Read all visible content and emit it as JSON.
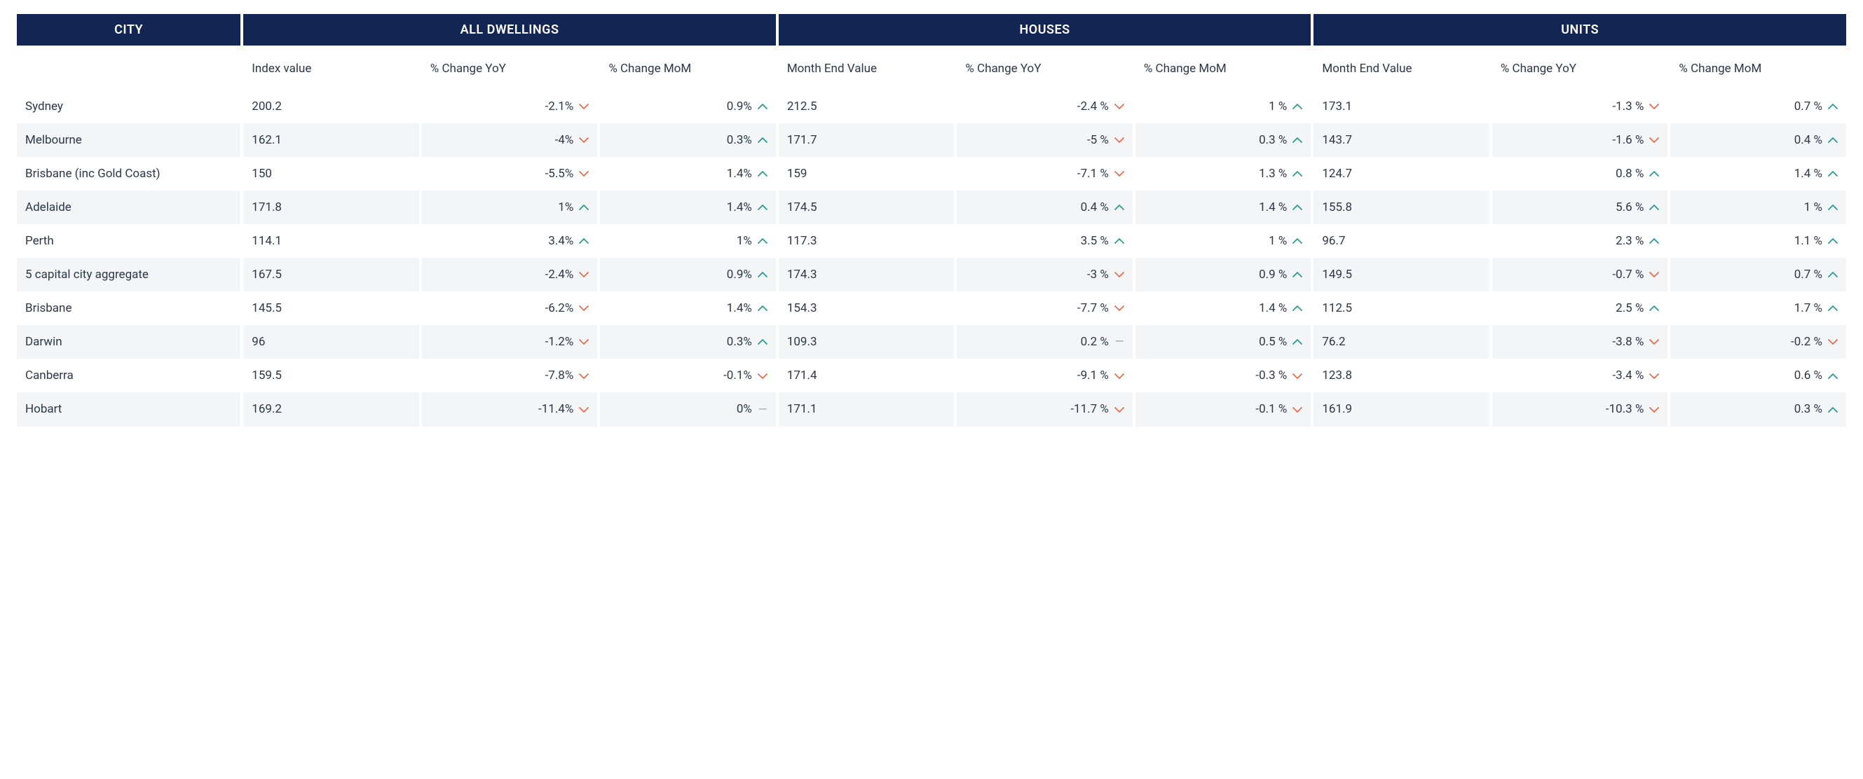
{
  "colors": {
    "header_bg": "#132552",
    "header_fg": "#ffffff",
    "row_alt_bg": "#f3f5f7",
    "text": "#2d3748",
    "chev_up": "#2a9d8f",
    "chev_down": "#e76f51",
    "neutral": "#9ca3af"
  },
  "group_headers": [
    "CITY",
    "ALL DWELLINGS",
    "HOUSES",
    "UNITS"
  ],
  "sub_headers": [
    "",
    "Index value",
    "% Change YoY",
    "% Change MoM",
    "Month End Value",
    "% Change YoY",
    "% Change MoM",
    "Month End Value",
    "% Change YoY",
    "% Change MoM"
  ],
  "rows": [
    {
      "city": "Sydney",
      "cells": [
        {
          "v": "200.2",
          "t": "val"
        },
        {
          "v": "-2.1%",
          "t": "pct",
          "d": "down"
        },
        {
          "v": "0.9%",
          "t": "pct",
          "d": "up"
        },
        {
          "v": "212.5",
          "t": "val"
        },
        {
          "v": "-2.4 %",
          "t": "pct",
          "d": "down"
        },
        {
          "v": "1 %",
          "t": "pct",
          "d": "up"
        },
        {
          "v": "173.1",
          "t": "val"
        },
        {
          "v": "-1.3 %",
          "t": "pct",
          "d": "down"
        },
        {
          "v": "0.7 %",
          "t": "pct",
          "d": "up"
        }
      ]
    },
    {
      "city": "Melbourne",
      "cells": [
        {
          "v": "162.1",
          "t": "val"
        },
        {
          "v": "-4%",
          "t": "pct",
          "d": "down"
        },
        {
          "v": "0.3%",
          "t": "pct",
          "d": "up"
        },
        {
          "v": "171.7",
          "t": "val"
        },
        {
          "v": "-5 %",
          "t": "pct",
          "d": "down"
        },
        {
          "v": "0.3 %",
          "t": "pct",
          "d": "up"
        },
        {
          "v": "143.7",
          "t": "val"
        },
        {
          "v": "-1.6 %",
          "t": "pct",
          "d": "down"
        },
        {
          "v": "0.4 %",
          "t": "pct",
          "d": "up"
        }
      ]
    },
    {
      "city": "Brisbane (inc Gold Coast)",
      "cells": [
        {
          "v": "150",
          "t": "val"
        },
        {
          "v": "-5.5%",
          "t": "pct",
          "d": "down"
        },
        {
          "v": "1.4%",
          "t": "pct",
          "d": "up"
        },
        {
          "v": "159",
          "t": "val"
        },
        {
          "v": "-7.1 %",
          "t": "pct",
          "d": "down"
        },
        {
          "v": "1.3 %",
          "t": "pct",
          "d": "up"
        },
        {
          "v": "124.7",
          "t": "val"
        },
        {
          "v": "0.8 %",
          "t": "pct",
          "d": "up"
        },
        {
          "v": "1.4 %",
          "t": "pct",
          "d": "up"
        }
      ]
    },
    {
      "city": "Adelaide",
      "cells": [
        {
          "v": "171.8",
          "t": "val"
        },
        {
          "v": "1%",
          "t": "pct",
          "d": "up"
        },
        {
          "v": "1.4%",
          "t": "pct",
          "d": "up"
        },
        {
          "v": "174.5",
          "t": "val"
        },
        {
          "v": "0.4 %",
          "t": "pct",
          "d": "up"
        },
        {
          "v": "1.4 %",
          "t": "pct",
          "d": "up"
        },
        {
          "v": "155.8",
          "t": "val"
        },
        {
          "v": "5.6 %",
          "t": "pct",
          "d": "up"
        },
        {
          "v": "1 %",
          "t": "pct",
          "d": "up"
        }
      ]
    },
    {
      "city": "Perth",
      "cells": [
        {
          "v": "114.1",
          "t": "val"
        },
        {
          "v": "3.4%",
          "t": "pct",
          "d": "up"
        },
        {
          "v": "1%",
          "t": "pct",
          "d": "up"
        },
        {
          "v": "117.3",
          "t": "val"
        },
        {
          "v": "3.5 %",
          "t": "pct",
          "d": "up"
        },
        {
          "v": "1 %",
          "t": "pct",
          "d": "up"
        },
        {
          "v": "96.7",
          "t": "val"
        },
        {
          "v": "2.3 %",
          "t": "pct",
          "d": "up"
        },
        {
          "v": "1.1 %",
          "t": "pct",
          "d": "up"
        }
      ]
    },
    {
      "city": "5 capital city aggregate",
      "cells": [
        {
          "v": "167.5",
          "t": "val"
        },
        {
          "v": "-2.4%",
          "t": "pct",
          "d": "down"
        },
        {
          "v": "0.9%",
          "t": "pct",
          "d": "up"
        },
        {
          "v": "174.3",
          "t": "val"
        },
        {
          "v": "-3 %",
          "t": "pct",
          "d": "down"
        },
        {
          "v": "0.9 %",
          "t": "pct",
          "d": "up"
        },
        {
          "v": "149.5",
          "t": "val"
        },
        {
          "v": "-0.7 %",
          "t": "pct",
          "d": "down"
        },
        {
          "v": "0.7 %",
          "t": "pct",
          "d": "up"
        }
      ]
    },
    {
      "city": "Brisbane",
      "cells": [
        {
          "v": "145.5",
          "t": "val"
        },
        {
          "v": "-6.2%",
          "t": "pct",
          "d": "down"
        },
        {
          "v": "1.4%",
          "t": "pct",
          "d": "up"
        },
        {
          "v": "154.3",
          "t": "val"
        },
        {
          "v": "-7.7 %",
          "t": "pct",
          "d": "down"
        },
        {
          "v": "1.4 %",
          "t": "pct",
          "d": "up"
        },
        {
          "v": "112.5",
          "t": "val"
        },
        {
          "v": "2.5 %",
          "t": "pct",
          "d": "up"
        },
        {
          "v": "1.7 %",
          "t": "pct",
          "d": "up"
        }
      ]
    },
    {
      "city": "Darwin",
      "cells": [
        {
          "v": "96",
          "t": "val"
        },
        {
          "v": "-1.2%",
          "t": "pct",
          "d": "down"
        },
        {
          "v": "0.3%",
          "t": "pct",
          "d": "up"
        },
        {
          "v": "109.3",
          "t": "val"
        },
        {
          "v": "0.2 %",
          "t": "pct",
          "d": "neutral"
        },
        {
          "v": "0.5 %",
          "t": "pct",
          "d": "up"
        },
        {
          "v": "76.2",
          "t": "val"
        },
        {
          "v": "-3.8 %",
          "t": "pct",
          "d": "down"
        },
        {
          "v": "-0.2 %",
          "t": "pct",
          "d": "down"
        }
      ]
    },
    {
      "city": "Canberra",
      "cells": [
        {
          "v": "159.5",
          "t": "val"
        },
        {
          "v": "-7.8%",
          "t": "pct",
          "d": "down"
        },
        {
          "v": "-0.1%",
          "t": "pct",
          "d": "down"
        },
        {
          "v": "171.4",
          "t": "val"
        },
        {
          "v": "-9.1 %",
          "t": "pct",
          "d": "down"
        },
        {
          "v": "-0.3 %",
          "t": "pct",
          "d": "down"
        },
        {
          "v": "123.8",
          "t": "val"
        },
        {
          "v": "-3.4 %",
          "t": "pct",
          "d": "down"
        },
        {
          "v": "0.6 %",
          "t": "pct",
          "d": "up"
        }
      ]
    },
    {
      "city": "Hobart",
      "cells": [
        {
          "v": "169.2",
          "t": "val"
        },
        {
          "v": "-11.4%",
          "t": "pct",
          "d": "down"
        },
        {
          "v": "0%",
          "t": "pct",
          "d": "neutral"
        },
        {
          "v": "171.1",
          "t": "val"
        },
        {
          "v": "-11.7 %",
          "t": "pct",
          "d": "down"
        },
        {
          "v": "-0.1 %",
          "t": "pct",
          "d": "down"
        },
        {
          "v": "161.9",
          "t": "val"
        },
        {
          "v": "-10.3 %",
          "t": "pct",
          "d": "down"
        },
        {
          "v": "0.3 %",
          "t": "pct",
          "d": "up"
        }
      ]
    }
  ]
}
